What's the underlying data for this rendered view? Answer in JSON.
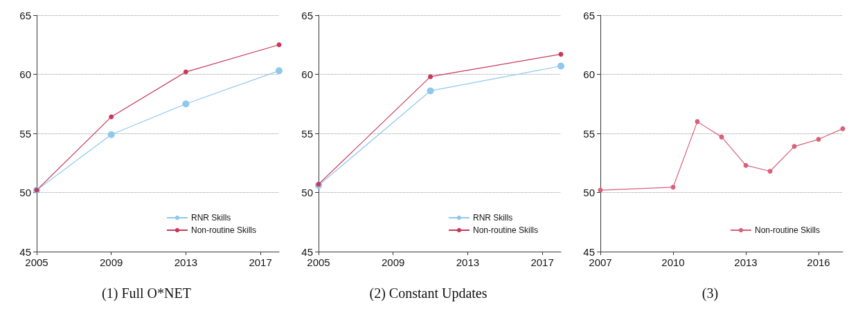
{
  "chart_data": [
    {
      "type": "line",
      "title": "(1) Full O*NET",
      "xlim": [
        2005,
        2018
      ],
      "xticks": [
        2005,
        2009,
        2013,
        2017
      ],
      "ylim": [
        45,
        65
      ],
      "yticks": [
        45,
        50,
        55,
        60,
        65
      ],
      "grid": "y",
      "legend": "bottom right",
      "marker": "circle",
      "series": [
        {
          "name": "RNR Skills",
          "color": "#8ec8ec",
          "x": [
            2005,
            2009,
            2013,
            2018
          ],
          "values": [
            50.2,
            54.9,
            57.5,
            60.3
          ]
        },
        {
          "name": "Non-routine Skills",
          "color": "#c8385a",
          "x": [
            2005,
            2009,
            2013,
            2018
          ],
          "values": [
            50.2,
            56.4,
            60.2,
            62.5
          ]
        }
      ]
    },
    {
      "type": "line",
      "title": "(2) Constant Updates",
      "xlim": [
        2005,
        2018
      ],
      "xticks": [
        2005,
        2009,
        2013,
        2017
      ],
      "ylim": [
        45,
        65
      ],
      "yticks": [
        45,
        50,
        55,
        60,
        65
      ],
      "grid": "y",
      "legend": "bottom right",
      "marker": "circle",
      "series": [
        {
          "name": "RNR Skills",
          "color": "#8ec8ec",
          "x": [
            2005,
            2011,
            2018
          ],
          "values": [
            50.6,
            58.6,
            60.7
          ]
        },
        {
          "name": "Non-routine Skills",
          "color": "#c8385a",
          "x": [
            2005,
            2011,
            2018
          ],
          "values": [
            50.7,
            59.8,
            61.7
          ]
        }
      ]
    },
    {
      "type": "line",
      "title": "(3)",
      "xlim": [
        2007,
        2017
      ],
      "xticks": [
        2007,
        2010,
        2013,
        2016
      ],
      "ylim": [
        45,
        65
      ],
      "yticks": [
        45,
        50,
        55,
        60,
        65
      ],
      "grid": "y",
      "legend": "bottom right",
      "marker": "circle",
      "series": [
        {
          "name": "Non-routine Skills",
          "color": "#d9607a",
          "x": [
            2007,
            2010,
            2011,
            2012,
            2013,
            2014,
            2015,
            2016,
            2017
          ],
          "values": [
            50.2,
            50.45,
            56.0,
            54.7,
            52.3,
            51.8,
            53.9,
            54.5,
            55.4
          ]
        }
      ]
    }
  ]
}
